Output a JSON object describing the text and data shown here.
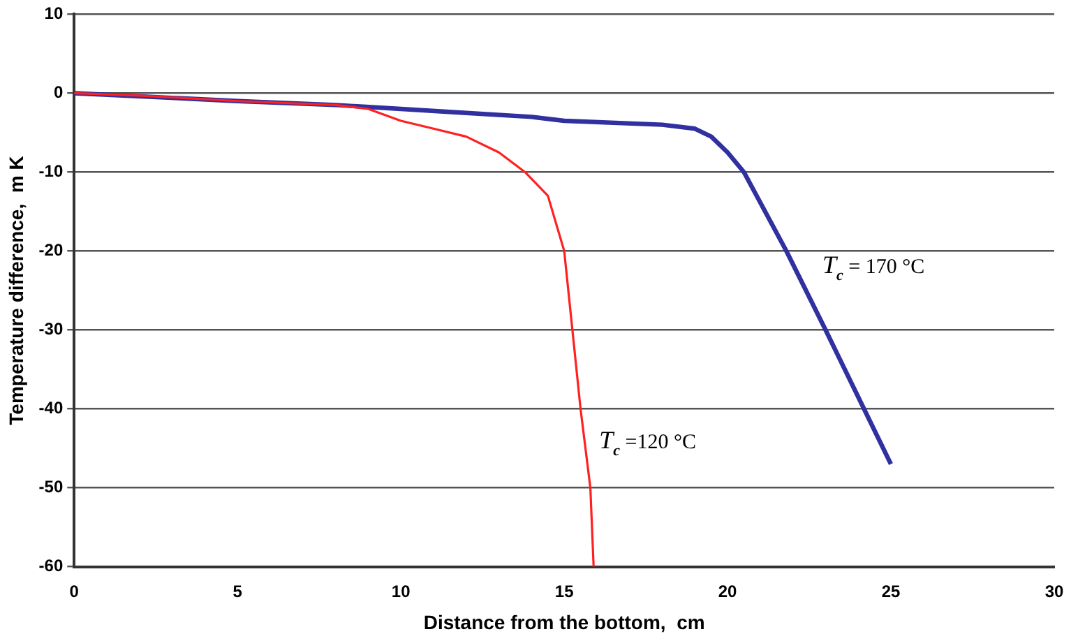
{
  "chart_data": {
    "type": "line",
    "xlabel": "Distance from the bottom,  cm",
    "ylabel": "Temperature difference,  m K",
    "xlim": [
      0,
      30
    ],
    "xticks": [
      0,
      5,
      10,
      15,
      20,
      25,
      30
    ],
    "ylim": [
      -60,
      10
    ],
    "yticks": [
      -60,
      -50,
      -40,
      -30,
      -20,
      -10,
      0,
      10
    ],
    "grid": "y",
    "legend": false,
    "marker": "none",
    "line_style": "solid",
    "series": [
      {
        "name": "T$_{c}$ =120 °C",
        "color": "#ff2020",
        "x": [
          0,
          2,
          5,
          8,
          9,
          10,
          11,
          12,
          13,
          13.8,
          14.5,
          15,
          15.25,
          15.5,
          15.8,
          15.9
        ],
        "values": [
          0,
          -0.3,
          -1,
          -1.5,
          -2,
          -3.5,
          -4.5,
          -5.5,
          -7.5,
          -10,
          -13,
          -20,
          -30,
          -40,
          -50,
          -60
        ]
      },
      {
        "name": "T$_{c}$ = 170 °C",
        "color": "#3030a0",
        "x": [
          0,
          5,
          8,
          10,
          12,
          14,
          15,
          18,
          19,
          19.5,
          20,
          20.5,
          21.8,
          23,
          25
        ],
        "values": [
          0,
          -1,
          -1.5,
          -2,
          -2.5,
          -3,
          -3.5,
          -4,
          -4.5,
          -5.5,
          -7.5,
          -10,
          -20,
          -30,
          -47
        ]
      }
    ]
  }
}
